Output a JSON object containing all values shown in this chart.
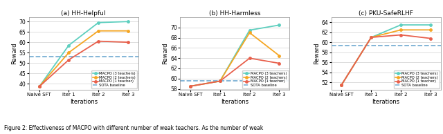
{
  "x_labels": [
    "Naive SFT",
    "Iter 1",
    "Iter 2",
    "Iter 3"
  ],
  "x_positions": [
    0,
    1,
    2,
    3
  ],
  "subplot_titles": [
    "(a) HH-Helpful",
    "(b) HH-Harmless",
    "(c) PKU-SafeRLHF"
  ],
  "chart1": {
    "macpo3": [
      38.5,
      58.5,
      69.5,
      70.0
    ],
    "macpo2": [
      38.5,
      55.0,
      65.5,
      65.5
    ],
    "macpo1": [
      38.5,
      51.5,
      60.5,
      60.0
    ],
    "sota": 53.0,
    "ylim": [
      37,
      72
    ],
    "yticks": [
      40,
      45,
      50,
      55,
      60,
      65,
      70
    ]
  },
  "chart2": {
    "macpo3": [
      58.5,
      59.5,
      69.5,
      70.5
    ],
    "macpo2": [
      58.5,
      59.5,
      69.0,
      64.5
    ],
    "macpo1": [
      58.5,
      59.5,
      64.0,
      63.0
    ],
    "sota": 59.5,
    "ylim": [
      57.8,
      72
    ],
    "yticks": [
      58,
      60,
      62,
      64,
      66,
      68,
      70
    ]
  },
  "chart3": {
    "macpo3": [
      51.5,
      61.0,
      63.5,
      63.5
    ],
    "macpo2": [
      51.5,
      61.0,
      62.5,
      62.5
    ],
    "macpo1": [
      51.5,
      61.0,
      61.5,
      60.8
    ],
    "sota": 59.3,
    "ylim": [
      50.5,
      65
    ],
    "yticks": [
      52,
      54,
      56,
      58,
      60,
      62,
      64
    ]
  },
  "colors": {
    "macpo3": "#5ecfbf",
    "macpo2": "#f5a623",
    "macpo1": "#e8604c",
    "sota": "#7ab0d4"
  },
  "legend_labels": [
    "MACPO (3 teachers)",
    "MACPO (2 teachers)",
    "MACPO (1 teacher)",
    "SOTA baseline"
  ],
  "ylabel": "Reward",
  "xlabel": "Iterations",
  "caption": "Figure 2: Effectiveness of MACPO with different number of weak teachers. As the number of weak"
}
